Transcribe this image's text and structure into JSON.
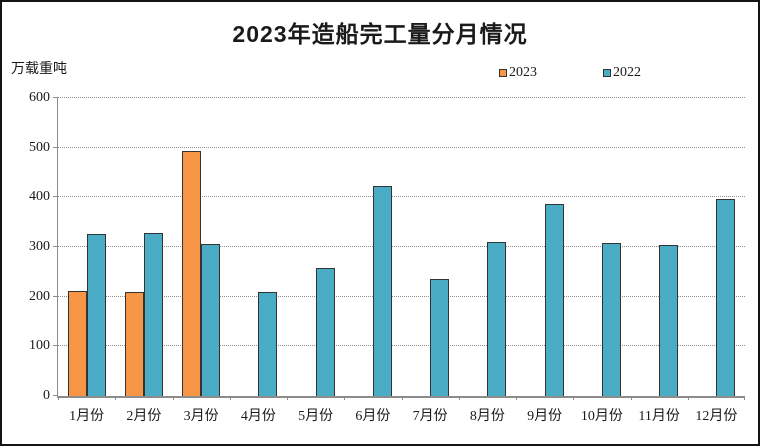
{
  "chart_data": {
    "type": "bar",
    "title": "2023年造船完工量分月情况",
    "unit_label": "万载重吨",
    "xlabel": "",
    "ylabel": "",
    "categories": [
      "1月份",
      "2月份",
      "3月份",
      "4月份",
      "5月份",
      "6月份",
      "7月份",
      "8月份",
      "9月份",
      "10月份",
      "11月份",
      "12月份"
    ],
    "series": [
      {
        "name": "2023",
        "color": "#F79646",
        "values": [
          211,
          210,
          494,
          null,
          null,
          null,
          null,
          null,
          null,
          null,
          null,
          null
        ]
      },
      {
        "name": "2022",
        "color": "#4BACC6",
        "values": [
          326,
          328,
          307,
          209,
          257,
          422,
          235,
          310,
          386,
          308,
          304,
          397
        ]
      }
    ],
    "ylim": [
      0,
      600
    ],
    "yticks": [
      0,
      100,
      200,
      300,
      400,
      500,
      600
    ],
    "grid": "horizontal-dotted",
    "legend_position": "top-right",
    "bar_border_color": "#333333"
  }
}
